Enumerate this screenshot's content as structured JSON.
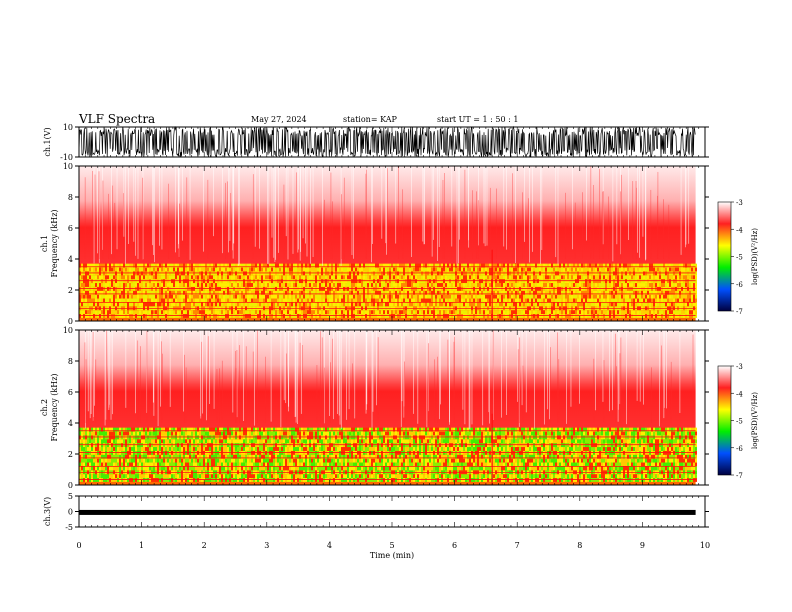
{
  "header": {
    "title": "VLF Spectra",
    "date": "May 27, 2024",
    "station": "station= KAP",
    "start": "start  UT  =   1 : 50 : 1"
  },
  "colorbar": {
    "label": "log(PSD)(V²/Hz)",
    "ticks": [
      -3,
      -4,
      -5,
      -6,
      -7
    ],
    "stops": [
      "#ffffff",
      "#ff2020",
      "#ffff00",
      "#00ee00",
      "#0050ff",
      "#000040"
    ]
  },
  "chart_data": [
    {
      "type": "line",
      "panel": "ch1-waveform",
      "ylabel": "ch.1(V)",
      "ylim": [
        -10,
        10
      ],
      "yticks": [
        10,
        -10
      ],
      "xlim": [
        0,
        10
      ],
      "description_values": "dense oscillating waveform saturating near ±10 V"
    },
    {
      "type": "heatmap",
      "panel": "ch1-spectrogram",
      "ylabel": "ch.1\nFrequency  (kHz)",
      "ylim": [
        0,
        10
      ],
      "yticks": [
        0,
        2,
        4,
        6,
        8,
        10
      ],
      "xlim": [
        0,
        10
      ],
      "x_end": 9.85,
      "zlim": [
        -7,
        -3
      ]
    },
    {
      "type": "heatmap",
      "panel": "ch2-spectrogram",
      "ylabel": "ch.2\nFrequency  (kHz)",
      "ylim": [
        0,
        10
      ],
      "yticks": [
        0,
        2,
        4,
        6,
        8,
        10
      ],
      "xlim": [
        0,
        10
      ],
      "x_end": 9.85,
      "zlim": [
        -7,
        -3
      ]
    },
    {
      "type": "line",
      "panel": "ch3-waveform",
      "ylabel": "ch.3(V)",
      "ylim": [
        -5,
        5
      ],
      "yticks": [
        5,
        0,
        -5
      ],
      "xlim": [
        0,
        10
      ],
      "level": -0.3
    }
  ],
  "xaxis": {
    "label": "Time  (min)",
    "ticks": [
      0,
      1,
      2,
      3,
      4,
      5,
      6,
      7,
      8,
      9,
      10
    ]
  }
}
